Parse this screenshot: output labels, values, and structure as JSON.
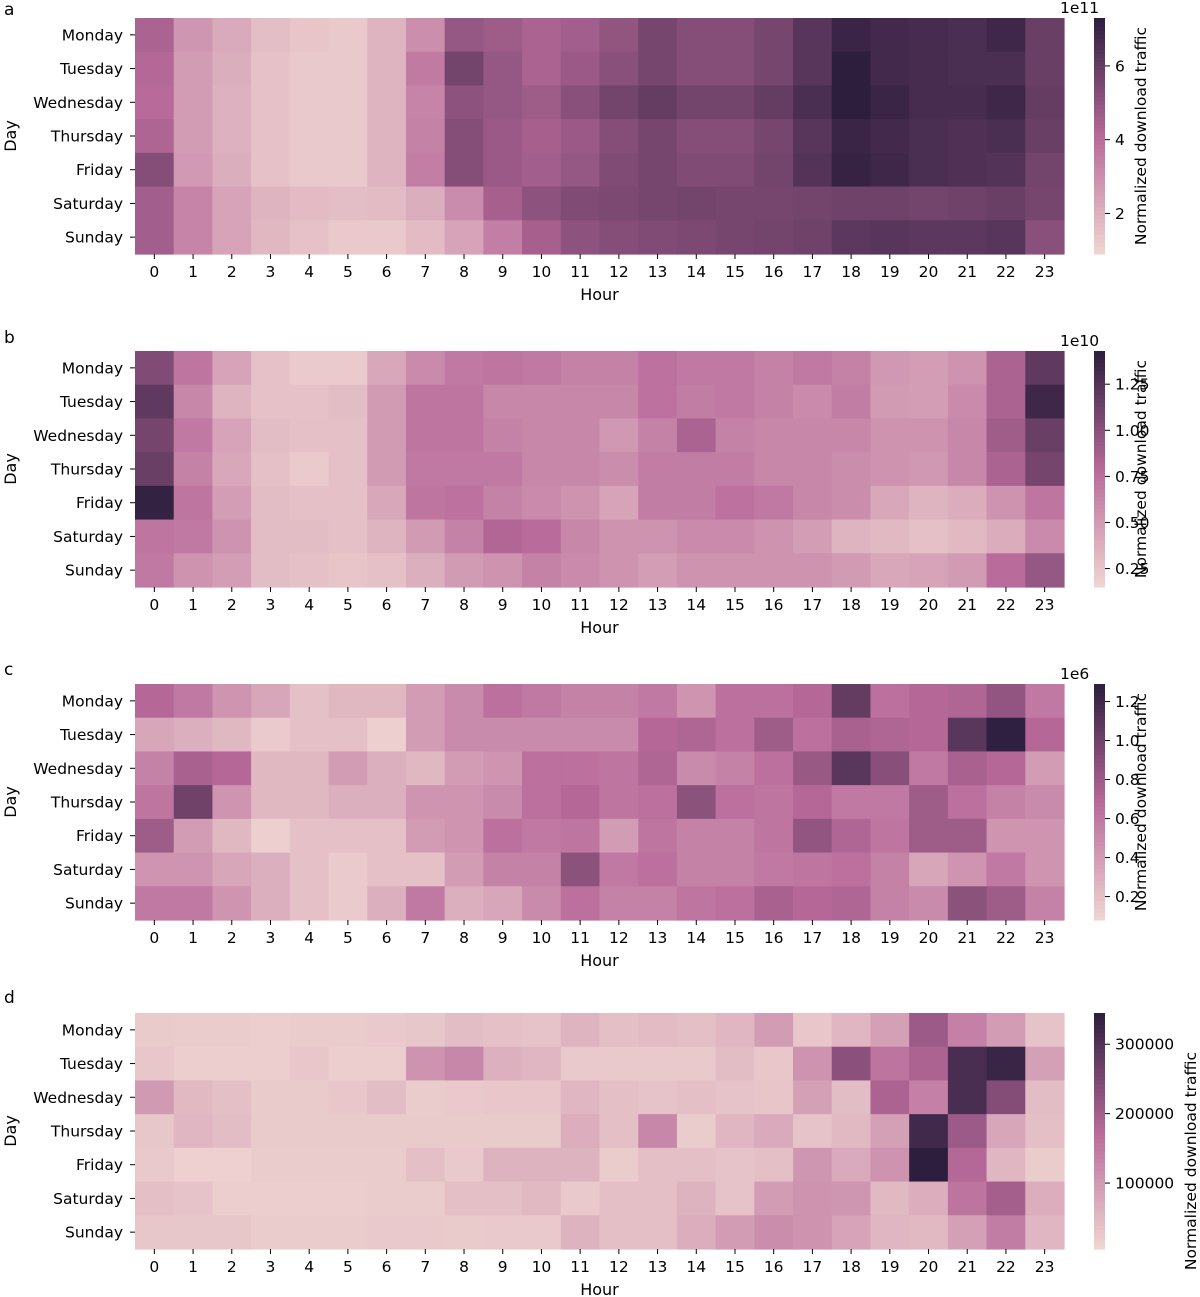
{
  "colors": {
    "low": "#f0d6d2",
    "mid": "#b86a9a",
    "high": "#2d1e3e",
    "tick": "#000000"
  },
  "chart_data": [
    {
      "type": "heatmap",
      "panel": "a",
      "xlabel": "Hour",
      "ylabel": "Day",
      "x": [
        "0",
        "1",
        "2",
        "3",
        "4",
        "5",
        "6",
        "7",
        "8",
        "9",
        "10",
        "11",
        "12",
        "13",
        "14",
        "15",
        "16",
        "17",
        "18",
        "19",
        "20",
        "21",
        "22",
        "23"
      ],
      "y": [
        "Monday",
        "Tuesday",
        "Wednesday",
        "Thursday",
        "Friday",
        "Saturday",
        "Sunday"
      ],
      "colorbar": {
        "label": "Normalized download traffic",
        "exponent": "1e11",
        "ticks": [
          "2",
          "4",
          "6"
        ],
        "tick_values": [
          2,
          4,
          6
        ],
        "range": [
          0.9,
          7.3
        ]
      },
      "values": [
        [
          4.4,
          2.8,
          2.2,
          1.6,
          1.4,
          1.3,
          1.9,
          3.0,
          4.9,
          4.7,
          4.4,
          4.6,
          5.0,
          5.6,
          5.3,
          5.3,
          5.6,
          6.3,
          7.0,
          6.8,
          6.7,
          6.6,
          6.9,
          5.9
        ],
        [
          4.2,
          2.6,
          2.1,
          1.5,
          1.3,
          1.3,
          1.9,
          3.6,
          5.7,
          4.9,
          4.4,
          4.8,
          5.2,
          5.6,
          5.3,
          5.3,
          5.6,
          6.3,
          7.3,
          6.8,
          6.7,
          6.6,
          6.6,
          5.9
        ],
        [
          4.1,
          2.6,
          2.0,
          1.5,
          1.3,
          1.3,
          1.9,
          3.3,
          5.1,
          4.9,
          4.7,
          5.2,
          5.7,
          6.0,
          5.7,
          5.7,
          6.0,
          6.6,
          7.3,
          7.0,
          6.7,
          6.7,
          6.9,
          6.0
        ],
        [
          4.3,
          2.6,
          2.0,
          1.5,
          1.3,
          1.3,
          1.9,
          3.4,
          5.3,
          4.8,
          4.5,
          4.8,
          5.3,
          5.6,
          5.3,
          5.3,
          5.6,
          6.3,
          7.0,
          6.8,
          6.6,
          6.5,
          6.6,
          5.9
        ],
        [
          5.3,
          2.7,
          2.1,
          1.5,
          1.3,
          1.3,
          1.9,
          3.5,
          5.3,
          4.8,
          4.6,
          4.9,
          5.4,
          5.6,
          5.4,
          5.4,
          5.7,
          6.4,
          7.1,
          6.9,
          6.6,
          6.5,
          6.4,
          5.7
        ],
        [
          4.6,
          3.3,
          2.4,
          1.9,
          1.7,
          1.6,
          1.7,
          2.1,
          3.1,
          4.5,
          5.1,
          5.4,
          5.5,
          5.6,
          5.7,
          5.6,
          5.6,
          5.7,
          5.8,
          5.8,
          5.7,
          5.8,
          5.9,
          5.6
        ],
        [
          4.6,
          3.3,
          2.4,
          1.8,
          1.5,
          1.3,
          1.3,
          1.7,
          2.4,
          3.5,
          4.5,
          5.1,
          5.3,
          5.4,
          5.5,
          5.6,
          5.7,
          5.8,
          6.2,
          6.3,
          6.2,
          6.2,
          6.3,
          5.2
        ]
      ]
    },
    {
      "type": "heatmap",
      "panel": "b",
      "xlabel": "Hour",
      "ylabel": "Day",
      "x": [
        "0",
        "1",
        "2",
        "3",
        "4",
        "5",
        "6",
        "7",
        "8",
        "9",
        "10",
        "11",
        "12",
        "13",
        "14",
        "15",
        "16",
        "17",
        "18",
        "19",
        "20",
        "21",
        "22",
        "23"
      ],
      "y": [
        "Monday",
        "Tuesday",
        "Wednesday",
        "Thursday",
        "Friday",
        "Saturday",
        "Sunday"
      ],
      "colorbar": {
        "label": "Normalized download traffic",
        "exponent": "1e10",
        "ticks": [
          "0.25",
          "0.50",
          "0.75",
          "1.00",
          "1.25"
        ],
        "tick_values": [
          0.25,
          0.5,
          0.75,
          1.0,
          1.25
        ],
        "range": [
          0.15,
          1.43
        ]
      },
      "values": [
        [
          1.05,
          0.72,
          0.45,
          0.27,
          0.22,
          0.22,
          0.42,
          0.6,
          0.7,
          0.72,
          0.7,
          0.65,
          0.65,
          0.75,
          0.7,
          0.7,
          0.65,
          0.7,
          0.65,
          0.52,
          0.48,
          0.55,
          0.85,
          1.2
        ],
        [
          1.2,
          0.62,
          0.35,
          0.27,
          0.27,
          0.3,
          0.5,
          0.72,
          0.72,
          0.62,
          0.62,
          0.62,
          0.62,
          0.75,
          0.68,
          0.7,
          0.65,
          0.6,
          0.68,
          0.5,
          0.48,
          0.6,
          0.85,
          1.35
        ],
        [
          1.1,
          0.7,
          0.45,
          0.3,
          0.28,
          0.28,
          0.5,
          0.72,
          0.72,
          0.65,
          0.62,
          0.62,
          0.52,
          0.65,
          0.85,
          0.65,
          0.62,
          0.62,
          0.62,
          0.55,
          0.55,
          0.62,
          0.9,
          1.15
        ],
        [
          1.15,
          0.65,
          0.42,
          0.28,
          0.22,
          0.28,
          0.5,
          0.7,
          0.7,
          0.7,
          0.62,
          0.62,
          0.58,
          0.68,
          0.68,
          0.68,
          0.62,
          0.62,
          0.58,
          0.55,
          0.52,
          0.62,
          0.85,
          1.1
        ],
        [
          1.4,
          0.72,
          0.48,
          0.3,
          0.28,
          0.28,
          0.42,
          0.72,
          0.75,
          0.65,
          0.6,
          0.55,
          0.45,
          0.68,
          0.68,
          0.75,
          0.7,
          0.62,
          0.58,
          0.42,
          0.35,
          0.4,
          0.55,
          0.72
        ],
        [
          0.72,
          0.7,
          0.55,
          0.3,
          0.3,
          0.28,
          0.35,
          0.5,
          0.65,
          0.82,
          0.78,
          0.62,
          0.55,
          0.55,
          0.6,
          0.6,
          0.55,
          0.48,
          0.35,
          0.32,
          0.28,
          0.32,
          0.4,
          0.6
        ],
        [
          0.7,
          0.55,
          0.48,
          0.3,
          0.28,
          0.25,
          0.28,
          0.38,
          0.5,
          0.55,
          0.65,
          0.6,
          0.55,
          0.48,
          0.55,
          0.55,
          0.55,
          0.55,
          0.5,
          0.42,
          0.45,
          0.5,
          0.78,
          0.95
        ]
      ]
    },
    {
      "type": "heatmap",
      "panel": "c",
      "xlabel": "Hour",
      "ylabel": "Day",
      "x": [
        "0",
        "1",
        "2",
        "3",
        "4",
        "5",
        "6",
        "7",
        "8",
        "9",
        "10",
        "11",
        "12",
        "13",
        "14",
        "15",
        "16",
        "17",
        "18",
        "19",
        "20",
        "21",
        "22",
        "23"
      ],
      "y": [
        "Monday",
        "Tuesday",
        "Wednesday",
        "Thursday",
        "Friday",
        "Saturday",
        "Sunday"
      ],
      "colorbar": {
        "label": "Normalized download traffic",
        "exponent": "1e6",
        "ticks": [
          "0.2",
          "0.4",
          "0.6",
          "0.8",
          "1.0",
          "1.2"
        ],
        "tick_values": [
          0.2,
          0.4,
          0.6,
          0.8,
          1.0,
          1.2
        ],
        "range": [
          0.08,
          1.29
        ]
      },
      "values": [
        [
          0.7,
          0.6,
          0.45,
          0.35,
          0.2,
          0.25,
          0.25,
          0.4,
          0.5,
          0.65,
          0.6,
          0.55,
          0.55,
          0.6,
          0.45,
          0.65,
          0.65,
          0.7,
          1.05,
          0.65,
          0.7,
          0.72,
          0.85,
          0.6
        ],
        [
          0.35,
          0.3,
          0.25,
          0.15,
          0.2,
          0.2,
          0.12,
          0.4,
          0.5,
          0.5,
          0.5,
          0.5,
          0.5,
          0.7,
          0.72,
          0.65,
          0.8,
          0.65,
          0.75,
          0.72,
          0.7,
          1.1,
          1.28,
          0.7
        ],
        [
          0.55,
          0.75,
          0.7,
          0.25,
          0.25,
          0.4,
          0.3,
          0.25,
          0.4,
          0.45,
          0.65,
          0.65,
          0.62,
          0.72,
          0.5,
          0.55,
          0.65,
          0.82,
          1.1,
          0.9,
          0.6,
          0.75,
          0.7,
          0.4
        ],
        [
          0.62,
          1.0,
          0.45,
          0.25,
          0.25,
          0.3,
          0.3,
          0.45,
          0.45,
          0.5,
          0.65,
          0.7,
          0.62,
          0.65,
          0.88,
          0.65,
          0.62,
          0.7,
          0.6,
          0.6,
          0.8,
          0.65,
          0.55,
          0.5
        ],
        [
          0.8,
          0.4,
          0.25,
          0.12,
          0.2,
          0.2,
          0.2,
          0.4,
          0.45,
          0.65,
          0.6,
          0.62,
          0.4,
          0.62,
          0.55,
          0.55,
          0.62,
          0.85,
          0.72,
          0.62,
          0.8,
          0.8,
          0.45,
          0.45
        ],
        [
          0.45,
          0.45,
          0.35,
          0.3,
          0.2,
          0.15,
          0.2,
          0.2,
          0.4,
          0.55,
          0.55,
          0.88,
          0.6,
          0.65,
          0.55,
          0.55,
          0.6,
          0.62,
          0.65,
          0.55,
          0.35,
          0.45,
          0.6,
          0.45
        ],
        [
          0.6,
          0.6,
          0.45,
          0.3,
          0.2,
          0.15,
          0.3,
          0.6,
          0.3,
          0.35,
          0.5,
          0.65,
          0.55,
          0.55,
          0.62,
          0.65,
          0.75,
          0.7,
          0.72,
          0.55,
          0.5,
          0.88,
          0.8,
          0.55
        ]
      ]
    },
    {
      "type": "heatmap",
      "panel": "d",
      "xlabel": "Hour",
      "ylabel": "Day",
      "x": [
        "0",
        "1",
        "2",
        "3",
        "4",
        "5",
        "6",
        "7",
        "8",
        "9",
        "10",
        "11",
        "12",
        "13",
        "14",
        "15",
        "16",
        "17",
        "18",
        "19",
        "20",
        "21",
        "22",
        "23"
      ],
      "y": [
        "Monday",
        "Tuesday",
        "Wednesday",
        "Thursday",
        "Friday",
        "Saturday",
        "Sunday"
      ],
      "colorbar": {
        "label": "Normalized download traffic",
        "exponent": "",
        "ticks": [
          "100000",
          "200000",
          "300000"
        ],
        "tick_values": [
          100000,
          200000,
          300000
        ],
        "range": [
          5000,
          345000
        ]
      },
      "values": [
        [
          22000,
          20000,
          20000,
          18000,
          20000,
          20000,
          25000,
          28000,
          45000,
          38000,
          35000,
          58000,
          40000,
          48000,
          40000,
          55000,
          95000,
          30000,
          55000,
          90000,
          210000,
          140000,
          95000,
          35000
        ],
        [
          28000,
          18000,
          18000,
          18000,
          28000,
          18000,
          18000,
          110000,
          130000,
          65000,
          55000,
          25000,
          25000,
          25000,
          25000,
          45000,
          30000,
          110000,
          230000,
          160000,
          190000,
          310000,
          330000,
          90000
        ],
        [
          100000,
          50000,
          40000,
          22000,
          22000,
          30000,
          45000,
          20000,
          25000,
          30000,
          30000,
          55000,
          40000,
          35000,
          40000,
          35000,
          32000,
          90000,
          45000,
          190000,
          140000,
          310000,
          240000,
          45000
        ],
        [
          28000,
          55000,
          45000,
          22000,
          22000,
          22000,
          22000,
          22000,
          22000,
          22000,
          22000,
          70000,
          40000,
          130000,
          20000,
          55000,
          75000,
          35000,
          50000,
          90000,
          320000,
          210000,
          80000,
          40000
        ],
        [
          25000,
          15000,
          15000,
          20000,
          20000,
          20000,
          20000,
          40000,
          25000,
          60000,
          60000,
          60000,
          20000,
          40000,
          40000,
          35000,
          40000,
          105000,
          75000,
          110000,
          345000,
          180000,
          55000,
          20000
        ],
        [
          40000,
          35000,
          18000,
          18000,
          18000,
          18000,
          20000,
          20000,
          40000,
          40000,
          50000,
          25000,
          40000,
          40000,
          60000,
          35000,
          95000,
          110000,
          105000,
          50000,
          70000,
          160000,
          200000,
          70000
        ],
        [
          28000,
          28000,
          28000,
          20000,
          20000,
          20000,
          25000,
          25000,
          22000,
          25000,
          25000,
          60000,
          40000,
          40000,
          70000,
          95000,
          120000,
          110000,
          85000,
          55000,
          50000,
          90000,
          145000,
          55000
        ]
      ]
    }
  ]
}
